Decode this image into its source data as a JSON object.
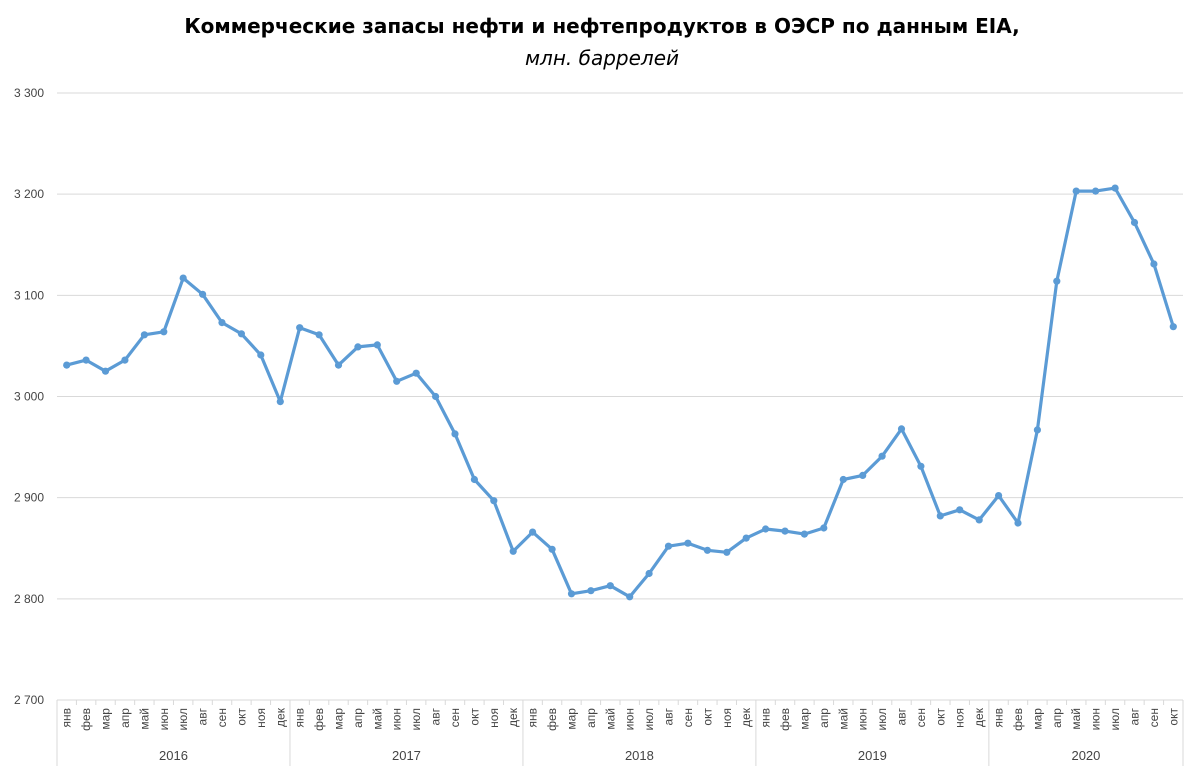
{
  "chart_data": {
    "type": "line",
    "title": "Коммерческие запасы нефти и нефтепродуктов в ОЭСР по данным EIA,",
    "subtitle": "млн. баррелей",
    "ylim": [
      2700,
      3300
    ],
    "yticks": [
      2700,
      2800,
      2900,
      3000,
      3100,
      3200,
      3300
    ],
    "ytick_labels": [
      "2 700",
      "2 800",
      "2 900",
      "3 000",
      "3 100",
      "3 200",
      "3 300"
    ],
    "grid": true,
    "legend": "none",
    "color": "#5B9BD5",
    "years": [
      {
        "label": "2016",
        "months": [
          "янв",
          "фев",
          "мар",
          "апр",
          "май",
          "июн",
          "июл",
          "авг",
          "сен",
          "окт",
          "ноя",
          "дек"
        ]
      },
      {
        "label": "2017",
        "months": [
          "янв",
          "фев",
          "мар",
          "апр",
          "май",
          "июн",
          "июл",
          "авг",
          "сен",
          "окт",
          "ноя",
          "дек"
        ]
      },
      {
        "label": "2018",
        "months": [
          "янв",
          "фев",
          "мар",
          "апр",
          "май",
          "июн",
          "июл",
          "авг",
          "сен",
          "окт",
          "ноя",
          "дек"
        ]
      },
      {
        "label": "2019",
        "months": [
          "янв",
          "фев",
          "мар",
          "апр",
          "май",
          "июн",
          "июл",
          "авг",
          "сен",
          "окт",
          "ноя",
          "дек"
        ]
      },
      {
        "label": "2020",
        "months": [
          "янв",
          "фев",
          "мар",
          "апр",
          "май",
          "июн",
          "июл",
          "авг",
          "сен",
          "окт"
        ]
      }
    ],
    "values": [
      3031,
      3036,
      3025,
      3036,
      3061,
      3064,
      3117,
      3101,
      3073,
      3062,
      3041,
      2995,
      3068,
      3061,
      3031,
      3049,
      3051,
      3015,
      3023,
      3000,
      2963,
      2918,
      2897,
      2847,
      2866,
      2849,
      2805,
      2808,
      2813,
      2802,
      2825,
      2852,
      2855,
      2848,
      2846,
      2860,
      2869,
      2867,
      2864,
      2870,
      2918,
      2922,
      2941,
      2968,
      2931,
      2882,
      2888,
      2878,
      2902,
      2875,
      2967,
      3114,
      3203,
      3203,
      3206,
      3172,
      3131,
      3069
    ]
  }
}
